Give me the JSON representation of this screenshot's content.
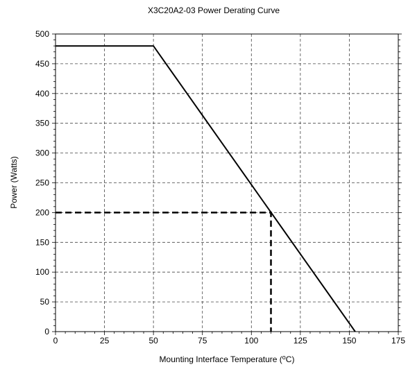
{
  "chart_data": {
    "type": "line",
    "title": "X3C20A2-03 Power Derating Curve",
    "xlabel": "Mounting Interface Temperature (",
    "xlabel_sup": "o",
    "xlabel_end": "C)",
    "ylabel": "Power (Watts)",
    "xlim": [
      0,
      175
    ],
    "ylim": [
      0,
      500
    ],
    "x_ticks": [
      0,
      25,
      50,
      75,
      100,
      125,
      150,
      175
    ],
    "y_ticks": [
      0,
      50,
      100,
      150,
      200,
      250,
      300,
      350,
      400,
      450,
      500
    ],
    "grid": true,
    "series": [
      {
        "style": "solid",
        "x": [
          0,
          50,
          153
        ],
        "y": [
          480,
          480,
          0
        ]
      },
      {
        "style": "dashed",
        "x": [
          0,
          110,
          110
        ],
        "y": [
          200,
          200,
          0
        ]
      }
    ]
  }
}
